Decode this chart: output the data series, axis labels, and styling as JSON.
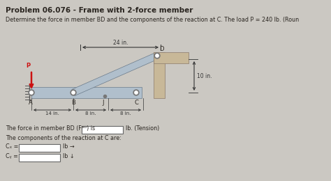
{
  "title": "Problem 06.076 - Frame with 2-force member",
  "problem_text": "Determine the force in member BD and the components of the reaction at C. The load P = 240 lb. (Roun",
  "bg_color": "#cbc8c2",
  "text_color": "#2a2520",
  "answer_line1": "The force in member BD (Fᴮᴰ) is",
  "answer_line2": "The components of the reaction at C are:",
  "answer_cx": "Cₓ =",
  "answer_cy": "Cᵧ =",
  "lb_tension": "lb. (Tension)",
  "lb_x": "lb →",
  "lb_y": "lb ↓",
  "dim_24": "24 in.",
  "dim_10": "10 in.",
  "dim_14": "14 in.",
  "dim_8a": "8 in.",
  "dim_8b": "8 in.",
  "label_P": "P",
  "label_A": "A",
  "label_B": "B",
  "label_C": "C",
  "label_D": "D",
  "label_J": "J",
  "frame_color_blue": "#b0bfcc",
  "frame_color_tan": "#c8b898",
  "pin_color": "#777777",
  "arrow_color": "#cc1111",
  "dim_color": "#333333"
}
